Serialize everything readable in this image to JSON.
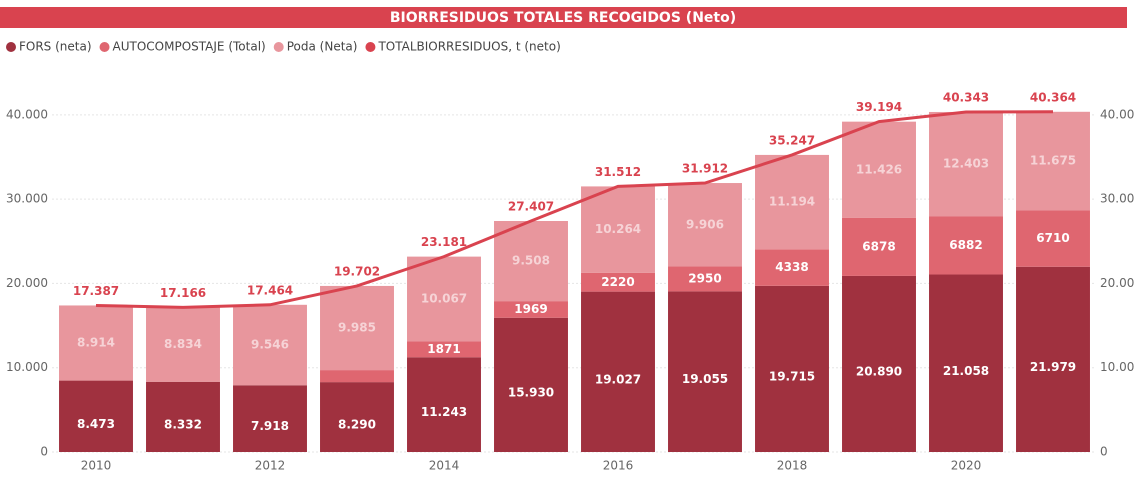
{
  "chart_data": {
    "type": "bar_line",
    "title": "BIORRESIDUOS TOTALES RECOGIDOS (Neto)",
    "categories": [
      "2010",
      null,
      "2012",
      null,
      "2014",
      null,
      "2016",
      null,
      "2018",
      null,
      "2020",
      null
    ],
    "series": [
      {
        "name": "FORS (neta)",
        "color": "#a0313f",
        "type": "bar",
        "values": [
          8473,
          8332,
          7918,
          8290,
          11243,
          15930,
          19027,
          19055,
          19715,
          20890,
          21058,
          21979
        ],
        "value_labels": [
          "8.473",
          "8.332",
          "7.918",
          "8.290",
          "11.243",
          "15.930",
          "19.027",
          "19.055",
          "19.715",
          "20.890",
          "21.058",
          "21.979"
        ]
      },
      {
        "name": "AUTOCOMPOSTAJE (Total)",
        "color": "#df6670",
        "type": "bar",
        "values": [
          0,
          0,
          0,
          1427,
          1871,
          1969,
          2220,
          2950,
          4338,
          6878,
          6882,
          6710
        ]
      },
      {
        "name": "Poda (Neta)",
        "color": "#e8969d",
        "type": "bar",
        "values": [
          8914,
          8834,
          9546,
          9985,
          10067,
          9508,
          10264,
          9906,
          11194,
          11426,
          12403,
          11675
        ],
        "value_labels": [
          "8.914",
          "8.834",
          "9.546",
          "9.985",
          "10.067",
          "9.508",
          "10.264",
          "9.906",
          "11.194",
          "11.426",
          "12.403",
          "11.675"
        ]
      },
      {
        "name": "TOTALBIORRESIDUOS, t (neto)",
        "color": "#d9434f",
        "type": "line",
        "axis": "y2",
        "values": [
          17387,
          17166,
          17464,
          19702,
          23181,
          27407,
          31512,
          31912,
          35247,
          39194,
          40343,
          40364
        ],
        "value_labels": [
          "17.387",
          "17.166",
          "17.464",
          "19.702",
          "23.181",
          "27.407",
          "31.512",
          "31.912",
          "35.247",
          "39.194",
          "40.343",
          "40.364"
        ]
      }
    ],
    "ylim": [
      0,
      42000
    ],
    "yticks": [
      0,
      {
        "value": 10000,
        "label": "10.000"
      },
      {
        "value": 20000,
        "label": "20.000"
      },
      {
        "value": 30000,
        "label": "30.000"
      },
      {
        "value": 40000,
        "label": "40.000"
      }
    ],
    "y2lim": [
      0,
      42000
    ],
    "y2ticks": [
      0,
      {
        "value": 10000,
        "label": "10.000"
      },
      {
        "value": 20000,
        "label": "20.000"
      },
      {
        "value": 30000,
        "label": "30.000"
      },
      {
        "value": 40000,
        "label": "40.000"
      }
    ],
    "grid": true,
    "legend": "top-left"
  }
}
